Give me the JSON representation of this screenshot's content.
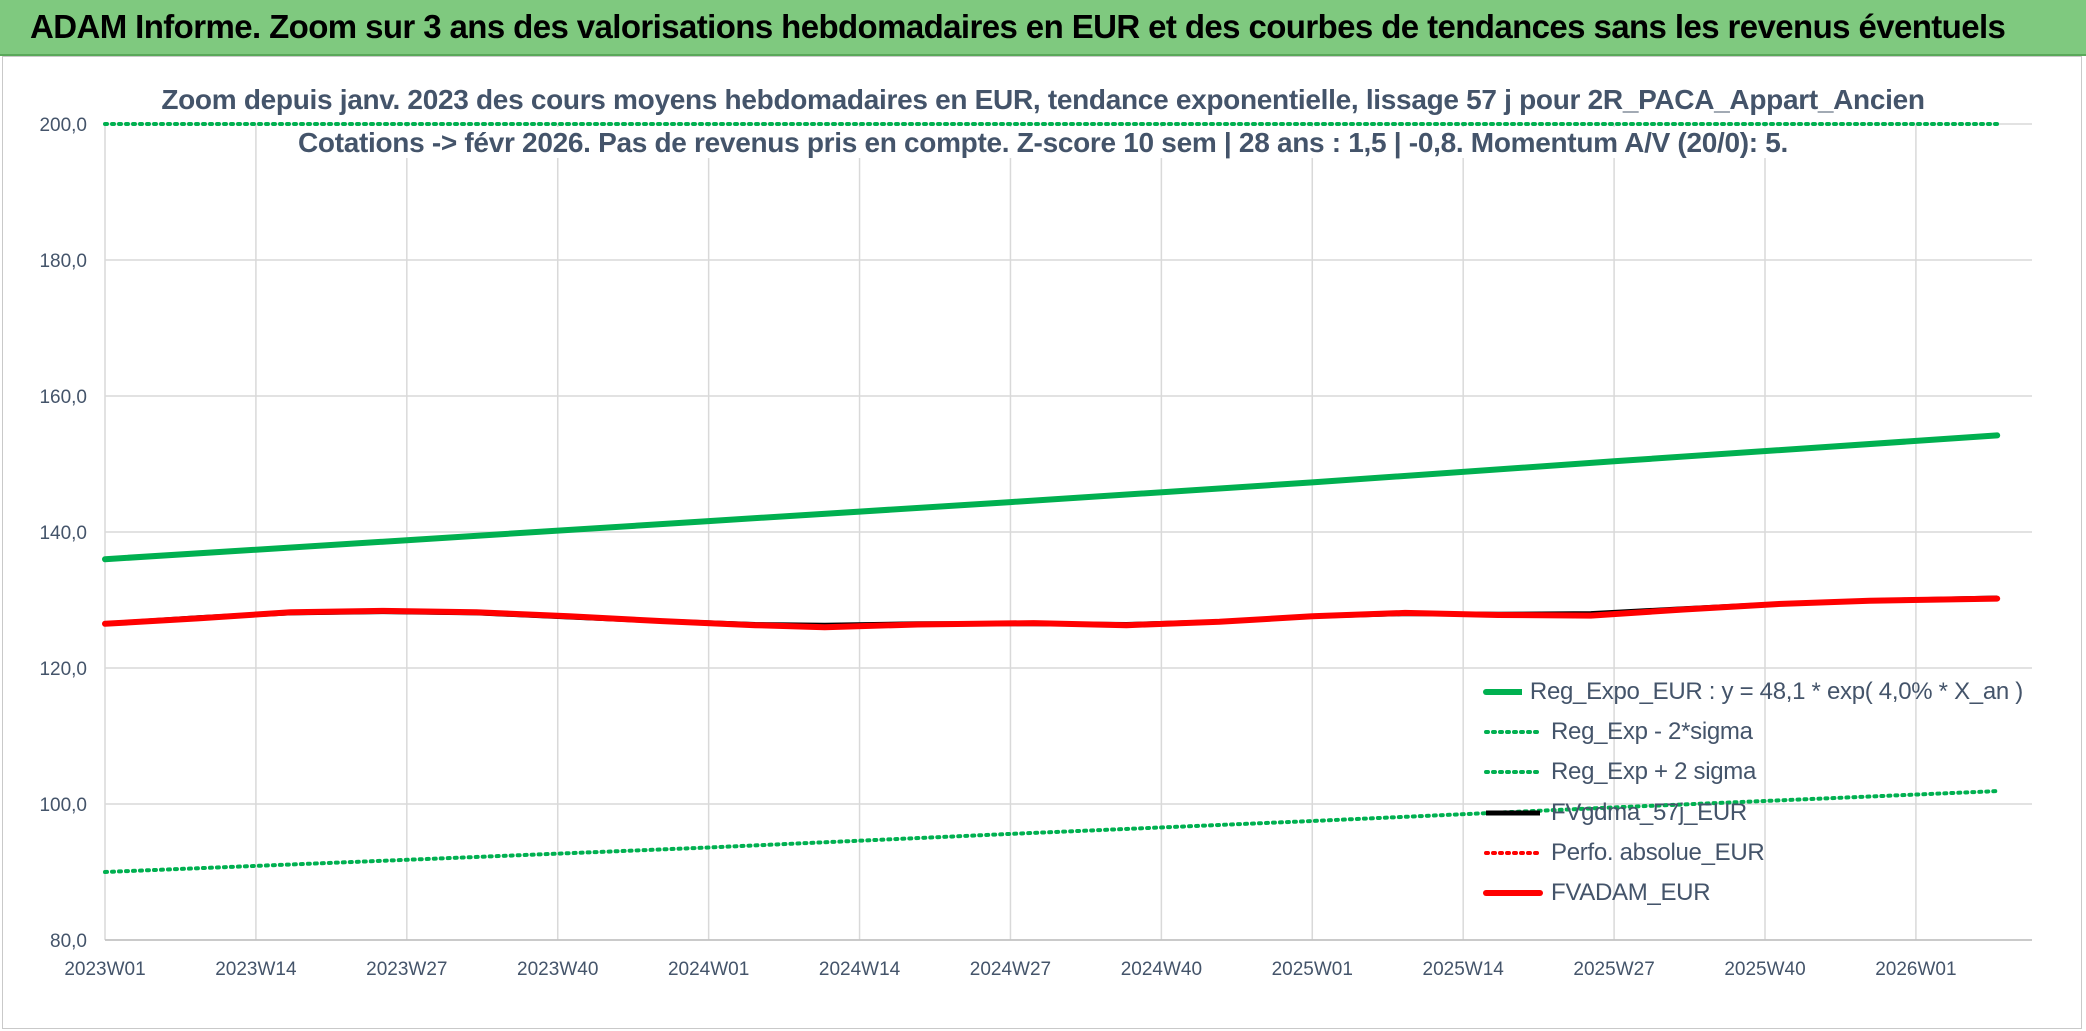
{
  "header": {
    "title": "ADAM Informe. Zoom sur 3 ans des valorisations hebdomadaires en EUR et des courbes de tendances sans les revenus éventuels"
  },
  "colors": {
    "header_bg": "#7fc97f",
    "text": "#44546a",
    "green": "#00b050",
    "red": "#ff0000",
    "black": "#000000",
    "grid": "#d9d9d9"
  },
  "chart_data": {
    "type": "line",
    "title_line1": "Zoom depuis janv. 2023 des cours moyens hebdomadaires en EUR, tendance exponentielle, lissage 57 j pour 2R_PACA_Appart_Ancien",
    "title_line2": "Cotations -> févr 2026. Pas de revenus pris en compte. Z-score 10 sem | 28 ans : 1,5 | -0,8. Momentum A/V (20/0): 5.",
    "xlabel": "",
    "ylabel": "",
    "ylim": [
      80,
      200
    ],
    "yticks": [
      80,
      100,
      120,
      140,
      160,
      180,
      200
    ],
    "ytick_labels": [
      "80,0",
      "100,0",
      "120,0",
      "140,0",
      "160,0",
      "180,0",
      "200,0"
    ],
    "x_range": [
      0,
      166
    ],
    "xticks": [
      0,
      13,
      26,
      39,
      52,
      65,
      78,
      91,
      104,
      117,
      130,
      143,
      156
    ],
    "xtick_labels": [
      "2023W01",
      "2023W14",
      "2023W27",
      "2023W40",
      "2024W01",
      "2024W14",
      "2024W27",
      "2024W40",
      "2025W01",
      "2025W14",
      "2025W27",
      "2025W40",
      "2026W01"
    ],
    "grid": true,
    "legend_position": "bottom-right",
    "series": [
      {
        "name": "Reg_Expo_EUR : y = 48,1 * exp( 4,0% *  X_an )",
        "style": "solid-thick",
        "color": "#00b050",
        "points": [
          [
            0,
            136.0
          ],
          [
            26,
            138.8
          ],
          [
            52,
            141.6
          ],
          [
            78,
            144.4
          ],
          [
            104,
            147.3
          ],
          [
            130,
            150.4
          ],
          [
            163,
            154.2
          ]
        ]
      },
      {
        "name": "Reg_Exp - 2*sigma",
        "style": "dotted",
        "color": "#00b050",
        "points": [
          [
            0,
            90.0
          ],
          [
            26,
            91.8
          ],
          [
            52,
            93.6
          ],
          [
            78,
            95.6
          ],
          [
            104,
            97.5
          ],
          [
            130,
            99.5
          ],
          [
            163,
            101.9
          ]
        ]
      },
      {
        "name": "Reg_Exp + 2 sigma",
        "style": "dotted",
        "color": "#00b050",
        "points": [
          [
            0,
            200.0
          ],
          [
            163,
            200.0
          ]
        ]
      },
      {
        "name": "FVgdma_57j_EUR",
        "style": "solid",
        "color": "#000000",
        "points": [
          [
            0,
            126.5
          ],
          [
            8,
            127.4
          ],
          [
            16,
            128.1
          ],
          [
            24,
            128.3
          ],
          [
            32,
            128.1
          ],
          [
            40,
            127.5
          ],
          [
            48,
            126.9
          ],
          [
            56,
            126.4
          ],
          [
            62,
            126.3
          ],
          [
            70,
            126.5
          ],
          [
            80,
            126.5
          ],
          [
            88,
            126.4
          ],
          [
            96,
            126.8
          ],
          [
            104,
            127.6
          ],
          [
            112,
            128.0
          ],
          [
            120,
            127.9
          ],
          [
            128,
            128.0
          ],
          [
            136,
            128.7
          ],
          [
            144,
            129.4
          ],
          [
            152,
            129.9
          ],
          [
            163,
            130.3
          ]
        ]
      },
      {
        "name": "Perfo. absolue_EUR",
        "style": "dotted",
        "color": "#ff0000",
        "points": [
          [
            0,
            126.5
          ],
          [
            8,
            127.3
          ],
          [
            16,
            128.2
          ],
          [
            24,
            128.4
          ],
          [
            32,
            128.2
          ],
          [
            40,
            127.6
          ],
          [
            48,
            126.9
          ],
          [
            56,
            126.3
          ],
          [
            62,
            126.0
          ],
          [
            70,
            126.4
          ],
          [
            80,
            126.6
          ],
          [
            88,
            126.3
          ],
          [
            96,
            126.8
          ],
          [
            104,
            127.6
          ],
          [
            112,
            128.1
          ],
          [
            120,
            127.8
          ],
          [
            128,
            127.7
          ],
          [
            136,
            128.6
          ],
          [
            144,
            129.4
          ],
          [
            152,
            129.9
          ],
          [
            163,
            130.2
          ]
        ]
      },
      {
        "name": "FVADAM_EUR",
        "style": "solid-thick",
        "color": "#ff0000",
        "points": [
          [
            0,
            126.5
          ],
          [
            8,
            127.3
          ],
          [
            16,
            128.2
          ],
          [
            24,
            128.4
          ],
          [
            32,
            128.2
          ],
          [
            40,
            127.6
          ],
          [
            48,
            126.9
          ],
          [
            56,
            126.3
          ],
          [
            62,
            126.0
          ],
          [
            70,
            126.4
          ],
          [
            80,
            126.6
          ],
          [
            88,
            126.3
          ],
          [
            96,
            126.8
          ],
          [
            104,
            127.6
          ],
          [
            112,
            128.1
          ],
          [
            120,
            127.8
          ],
          [
            128,
            127.7
          ],
          [
            136,
            128.6
          ],
          [
            144,
            129.4
          ],
          [
            152,
            129.9
          ],
          [
            163,
            130.2
          ]
        ]
      }
    ]
  }
}
